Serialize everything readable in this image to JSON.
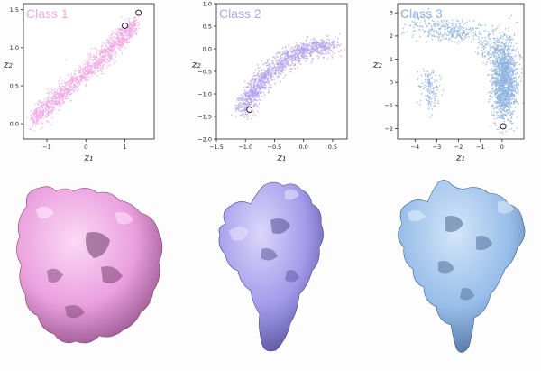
{
  "chart_data": [
    {
      "type": "scatter",
      "title": "Class 1",
      "color": "#f2a8e6",
      "xlabel": "z₁",
      "ylabel": "z₂",
      "xlim": [
        -1.6,
        1.75
      ],
      "ylim": [
        -0.2,
        1.58
      ],
      "xticks": [
        -1,
        0,
        1
      ],
      "xtick_labels": [
        "−1",
        "0",
        "1"
      ],
      "yticks": [
        0.0,
        0.5,
        1.0,
        1.5
      ],
      "ytick_labels": [
        "0.0",
        "0.5",
        "1.0",
        "1.5"
      ],
      "grid": false,
      "cloud": {
        "shape": "band",
        "points": 1400,
        "path": [
          [
            -1.35,
            0.06
          ],
          [
            -0.5,
            0.44
          ],
          [
            0.5,
            0.92
          ],
          [
            1.3,
            1.33
          ]
        ],
        "spread": 0.07
      },
      "highlighted_points": [
        [
          1.0,
          1.29
        ],
        [
          1.35,
          1.46
        ]
      ]
    },
    {
      "type": "scatter",
      "title": "Class 2",
      "color": "#b3a3ee",
      "xlabel": "z₁",
      "ylabel": "z₂",
      "xlim": [
        -1.5,
        0.75
      ],
      "ylim": [
        -2.0,
        1.0
      ],
      "xticks": [
        -1.5,
        -1.0,
        -0.5,
        0.0,
        0.5
      ],
      "xtick_labels": [
        "−1.5",
        "−1.0",
        "−0.5",
        "0.0",
        "0.5"
      ],
      "yticks": [
        -2.0,
        -1.5,
        -1.0,
        -0.5,
        0.0,
        0.5,
        1.0
      ],
      "ytick_labels": [
        "−2.0",
        "−1.5",
        "−1.0",
        "−0.5",
        "0.0",
        "0.5",
        "1.0"
      ],
      "grid": false,
      "cloud": {
        "shape": "band",
        "points": 1300,
        "path": [
          [
            -1.0,
            -1.38
          ],
          [
            -0.88,
            -0.95
          ],
          [
            -0.62,
            -0.55
          ],
          [
            -0.25,
            -0.18
          ],
          [
            0.1,
            0.0
          ],
          [
            0.5,
            0.06
          ]
        ],
        "spread": 0.1
      },
      "highlighted_points": [
        [
          -0.93,
          -1.35
        ]
      ]
    },
    {
      "type": "scatter",
      "title": "Class 3",
      "color": "#8fb3e0",
      "xlabel": "z₁",
      "ylabel": "z₂",
      "xlim": [
        -4.8,
        1.0
      ],
      "ylim": [
        -2.45,
        3.4
      ],
      "xticks": [
        -4,
        -3,
        -2,
        -1,
        0
      ],
      "xtick_labels": [
        "−4",
        "−3",
        "−2",
        "−1",
        "0"
      ],
      "yticks": [
        -2,
        -1,
        0,
        1,
        2,
        3
      ],
      "ytick_labels": [
        "−2",
        "−1",
        "0",
        "1",
        "2",
        "3"
      ],
      "grid": false,
      "cloud": {
        "shape": "clusters",
        "clusters": [
          {
            "center": [
              0.1,
              0.1
            ],
            "spread": [
              0.28,
              0.85
            ],
            "points": 1500
          },
          {
            "center": [
              -2.2,
              2.2
            ],
            "spread": [
              0.65,
              0.22
            ],
            "points": 260
          },
          {
            "center": [
              -3.3,
              -0.3
            ],
            "spread": [
              0.25,
              0.42
            ],
            "points": 140
          },
          {
            "center": [
              -0.6,
              1.5
            ],
            "spread": [
              0.3,
              0.35
            ],
            "points": 110
          },
          {
            "center": [
              -3.7,
              2.5
            ],
            "spread": [
              0.45,
              0.3
            ],
            "points": 60
          }
        ]
      },
      "highlighted_points": [
        [
          0.05,
          -1.9
        ]
      ]
    }
  ],
  "structures": [
    {
      "name": "Class 1 density map",
      "color": "#f4aeea"
    },
    {
      "name": "Class 2 density map",
      "color": "#aba3f0"
    },
    {
      "name": "Class 3 density map",
      "color": "#9cc1ec"
    }
  ]
}
